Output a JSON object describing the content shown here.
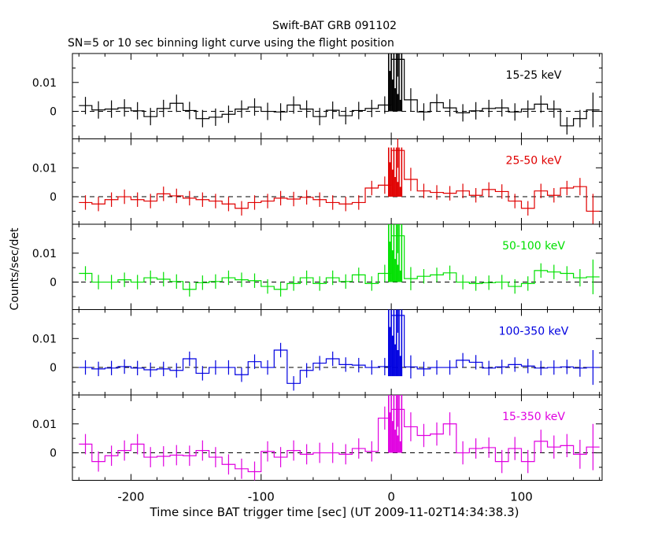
{
  "title": "Swift-BAT GRB 091102",
  "subtitle": "SN=5 or 10 sec binning light curve using the flight position",
  "ylabel": "Counts/sec/det",
  "xlabel": "Time since BAT trigger time [sec] (UT 2009-11-02T14:34:38.3)",
  "chart_data": {
    "type": "line",
    "xlim": [
      -245,
      162
    ],
    "ylim": [
      -0.0095,
      0.02
    ],
    "x_ticks": [
      -200,
      -100,
      0,
      100
    ],
    "y_ticks": [
      {
        "value": 0,
        "label": "0"
      },
      {
        "value": 0.01,
        "label": "0.01"
      }
    ],
    "bins_x": [
      -240,
      -230,
      -220,
      -210,
      -200,
      -190,
      -180,
      -170,
      -160,
      -150,
      -140,
      -130,
      -120,
      -110,
      -100,
      -90,
      -80,
      -70,
      -60,
      -50,
      -40,
      -30,
      -20,
      -10,
      0,
      10,
      20,
      30,
      40,
      50,
      60,
      70,
      80,
      90,
      100,
      110,
      120,
      130,
      140,
      150
    ],
    "panels": [
      {
        "name": "15-25 keV",
        "color": "#000000",
        "values": [
          0.002,
          0.0005,
          0.0008,
          0.0012,
          0.0002,
          -0.0018,
          0.001,
          0.0028,
          0.0003,
          -0.0025,
          -0.002,
          -0.001,
          0.0008,
          0.0015,
          0.0,
          -0.0002,
          0.0022,
          0.0008,
          -0.0018,
          0.0004,
          -0.0015,
          0.0003,
          0.001,
          0.0022,
          0.018,
          0.004,
          -0.0002,
          0.003,
          0.0012,
          -0.0005,
          0.0002,
          0.001,
          0.0012,
          -0.0002,
          0.0008,
          0.0025,
          0.0008,
          -0.005,
          -0.0025,
          0.0005
        ],
        "errors": [
          0.003,
          0.003,
          0.003,
          0.003,
          0.003,
          0.003,
          0.003,
          0.003,
          0.003,
          0.003,
          0.003,
          0.003,
          0.003,
          0.003,
          0.003,
          0.003,
          0.003,
          0.003,
          0.003,
          0.003,
          0.003,
          0.003,
          0.003,
          0.003,
          0.006,
          0.004,
          0.003,
          0.003,
          0.003,
          0.003,
          0.003,
          0.003,
          0.003,
          0.003,
          0.003,
          0.003,
          0.003,
          0.003,
          0.003,
          0.006
        ]
      },
      {
        "name": "25-50 keV",
        "color": "#e00000",
        "values": [
          -0.002,
          -0.0025,
          -0.001,
          0.0,
          -0.001,
          -0.0015,
          0.001,
          0.0003,
          -0.0005,
          -0.001,
          -0.0015,
          -0.0025,
          -0.004,
          -0.002,
          -0.0015,
          -0.0005,
          -0.0008,
          -0.0002,
          -0.001,
          -0.002,
          -0.0025,
          -0.002,
          0.003,
          0.004,
          0.016,
          0.006,
          0.002,
          0.0015,
          0.0012,
          0.002,
          0.0005,
          0.0025,
          0.0018,
          -0.0015,
          -0.004,
          0.002,
          0.0005,
          0.003,
          0.0035,
          -0.005
        ],
        "errors": [
          0.0025,
          0.0025,
          0.0025,
          0.0025,
          0.0025,
          0.0025,
          0.0025,
          0.0025,
          0.0025,
          0.0025,
          0.0025,
          0.0025,
          0.0025,
          0.0025,
          0.0025,
          0.0025,
          0.0025,
          0.0025,
          0.0025,
          0.0025,
          0.0025,
          0.0025,
          0.0025,
          0.003,
          0.006,
          0.004,
          0.0025,
          0.0025,
          0.0025,
          0.0025,
          0.0025,
          0.0025,
          0.0025,
          0.0025,
          0.0025,
          0.0025,
          0.0025,
          0.0025,
          0.003,
          0.006
        ]
      },
      {
        "name": "50-100 keV",
        "color": "#00e000",
        "values": [
          0.003,
          0.0,
          0.0,
          0.0008,
          0.0,
          0.0015,
          0.001,
          0.0002,
          -0.0025,
          -0.0002,
          0.0002,
          0.0015,
          0.0008,
          0.0005,
          -0.0015,
          -0.0025,
          -0.0005,
          0.0015,
          -0.0005,
          0.0015,
          0.0002,
          0.0025,
          -0.0005,
          0.003,
          0.016,
          0.0012,
          0.002,
          0.0025,
          0.0032,
          0.0,
          -0.0005,
          -0.0002,
          0.0,
          -0.0015,
          -0.0005,
          0.004,
          0.0035,
          0.003,
          0.0015,
          0.0018
        ],
        "errors": [
          0.0025,
          0.0025,
          0.0025,
          0.0025,
          0.0025,
          0.0025,
          0.0025,
          0.0025,
          0.0025,
          0.0025,
          0.0025,
          0.0025,
          0.0025,
          0.0025,
          0.0025,
          0.0025,
          0.0025,
          0.0025,
          0.0025,
          0.0025,
          0.0025,
          0.0025,
          0.0025,
          0.003,
          0.006,
          0.004,
          0.0025,
          0.0025,
          0.0025,
          0.0025,
          0.0025,
          0.0025,
          0.0025,
          0.0025,
          0.0025,
          0.0025,
          0.0025,
          0.0025,
          0.003,
          0.006
        ]
      },
      {
        "name": "100-350 keV",
        "color": "#0000e0",
        "values": [
          0.0,
          -0.0005,
          -0.0002,
          0.0003,
          -0.0002,
          -0.0008,
          -0.0005,
          -0.001,
          0.003,
          -0.002,
          0.0,
          0.0,
          -0.0025,
          0.002,
          0.0,
          0.006,
          -0.0055,
          -0.001,
          0.0015,
          0.003,
          0.001,
          0.0008,
          0.0,
          0.0003,
          0.018,
          0.0002,
          -0.0005,
          0.0,
          0.0,
          0.0025,
          0.0018,
          -0.0002,
          0.0002,
          0.001,
          0.0005,
          -0.0002,
          0.0,
          0.0002,
          -0.0002,
          0.0
        ],
        "errors": [
          0.0025,
          0.0025,
          0.0025,
          0.0025,
          0.0025,
          0.0025,
          0.0025,
          0.0025,
          0.0025,
          0.0025,
          0.0025,
          0.0025,
          0.0025,
          0.0025,
          0.0025,
          0.0025,
          0.0025,
          0.0025,
          0.0025,
          0.0025,
          0.0025,
          0.0025,
          0.0025,
          0.003,
          0.006,
          0.004,
          0.0025,
          0.0025,
          0.0025,
          0.0025,
          0.0025,
          0.0025,
          0.0025,
          0.0025,
          0.0025,
          0.0025,
          0.0025,
          0.0025,
          0.003,
          0.006
        ]
      },
      {
        "name": "15-350 keV",
        "color": "#e000e0",
        "values": [
          0.003,
          -0.003,
          -0.001,
          0.0008,
          0.003,
          -0.0015,
          -0.0012,
          -0.0008,
          -0.001,
          0.0008,
          -0.0015,
          -0.004,
          -0.0055,
          -0.0065,
          0.0005,
          -0.0015,
          0.0008,
          -0.0005,
          0.0,
          0.0,
          -0.0005,
          0.0015,
          0.0005,
          0.012,
          0.015,
          0.009,
          0.006,
          0.0065,
          0.01,
          0.0,
          0.0015,
          0.0018,
          -0.003,
          0.0015,
          -0.003,
          0.004,
          0.002,
          0.0025,
          -0.0005,
          0.002
        ],
        "errors": [
          0.0035,
          0.0035,
          0.0035,
          0.0035,
          0.0035,
          0.0035,
          0.0035,
          0.0035,
          0.0035,
          0.0035,
          0.0035,
          0.0035,
          0.0035,
          0.0035,
          0.0035,
          0.0035,
          0.0035,
          0.0035,
          0.0035,
          0.0035,
          0.0035,
          0.0035,
          0.0035,
          0.004,
          0.006,
          0.005,
          0.004,
          0.004,
          0.004,
          0.004,
          0.0035,
          0.0035,
          0.004,
          0.004,
          0.004,
          0.004,
          0.004,
          0.004,
          0.005,
          0.008
        ]
      }
    ],
    "grb_spike": {
      "x": [
        -2,
        -1,
        0,
        1,
        2,
        3,
        4,
        5,
        6,
        7,
        8
      ],
      "peaks": [
        0.02,
        0.014,
        0.02,
        0.011,
        0.02,
        0.008,
        0.02,
        0.006,
        0.02,
        0.004,
        0.02
      ]
    }
  }
}
